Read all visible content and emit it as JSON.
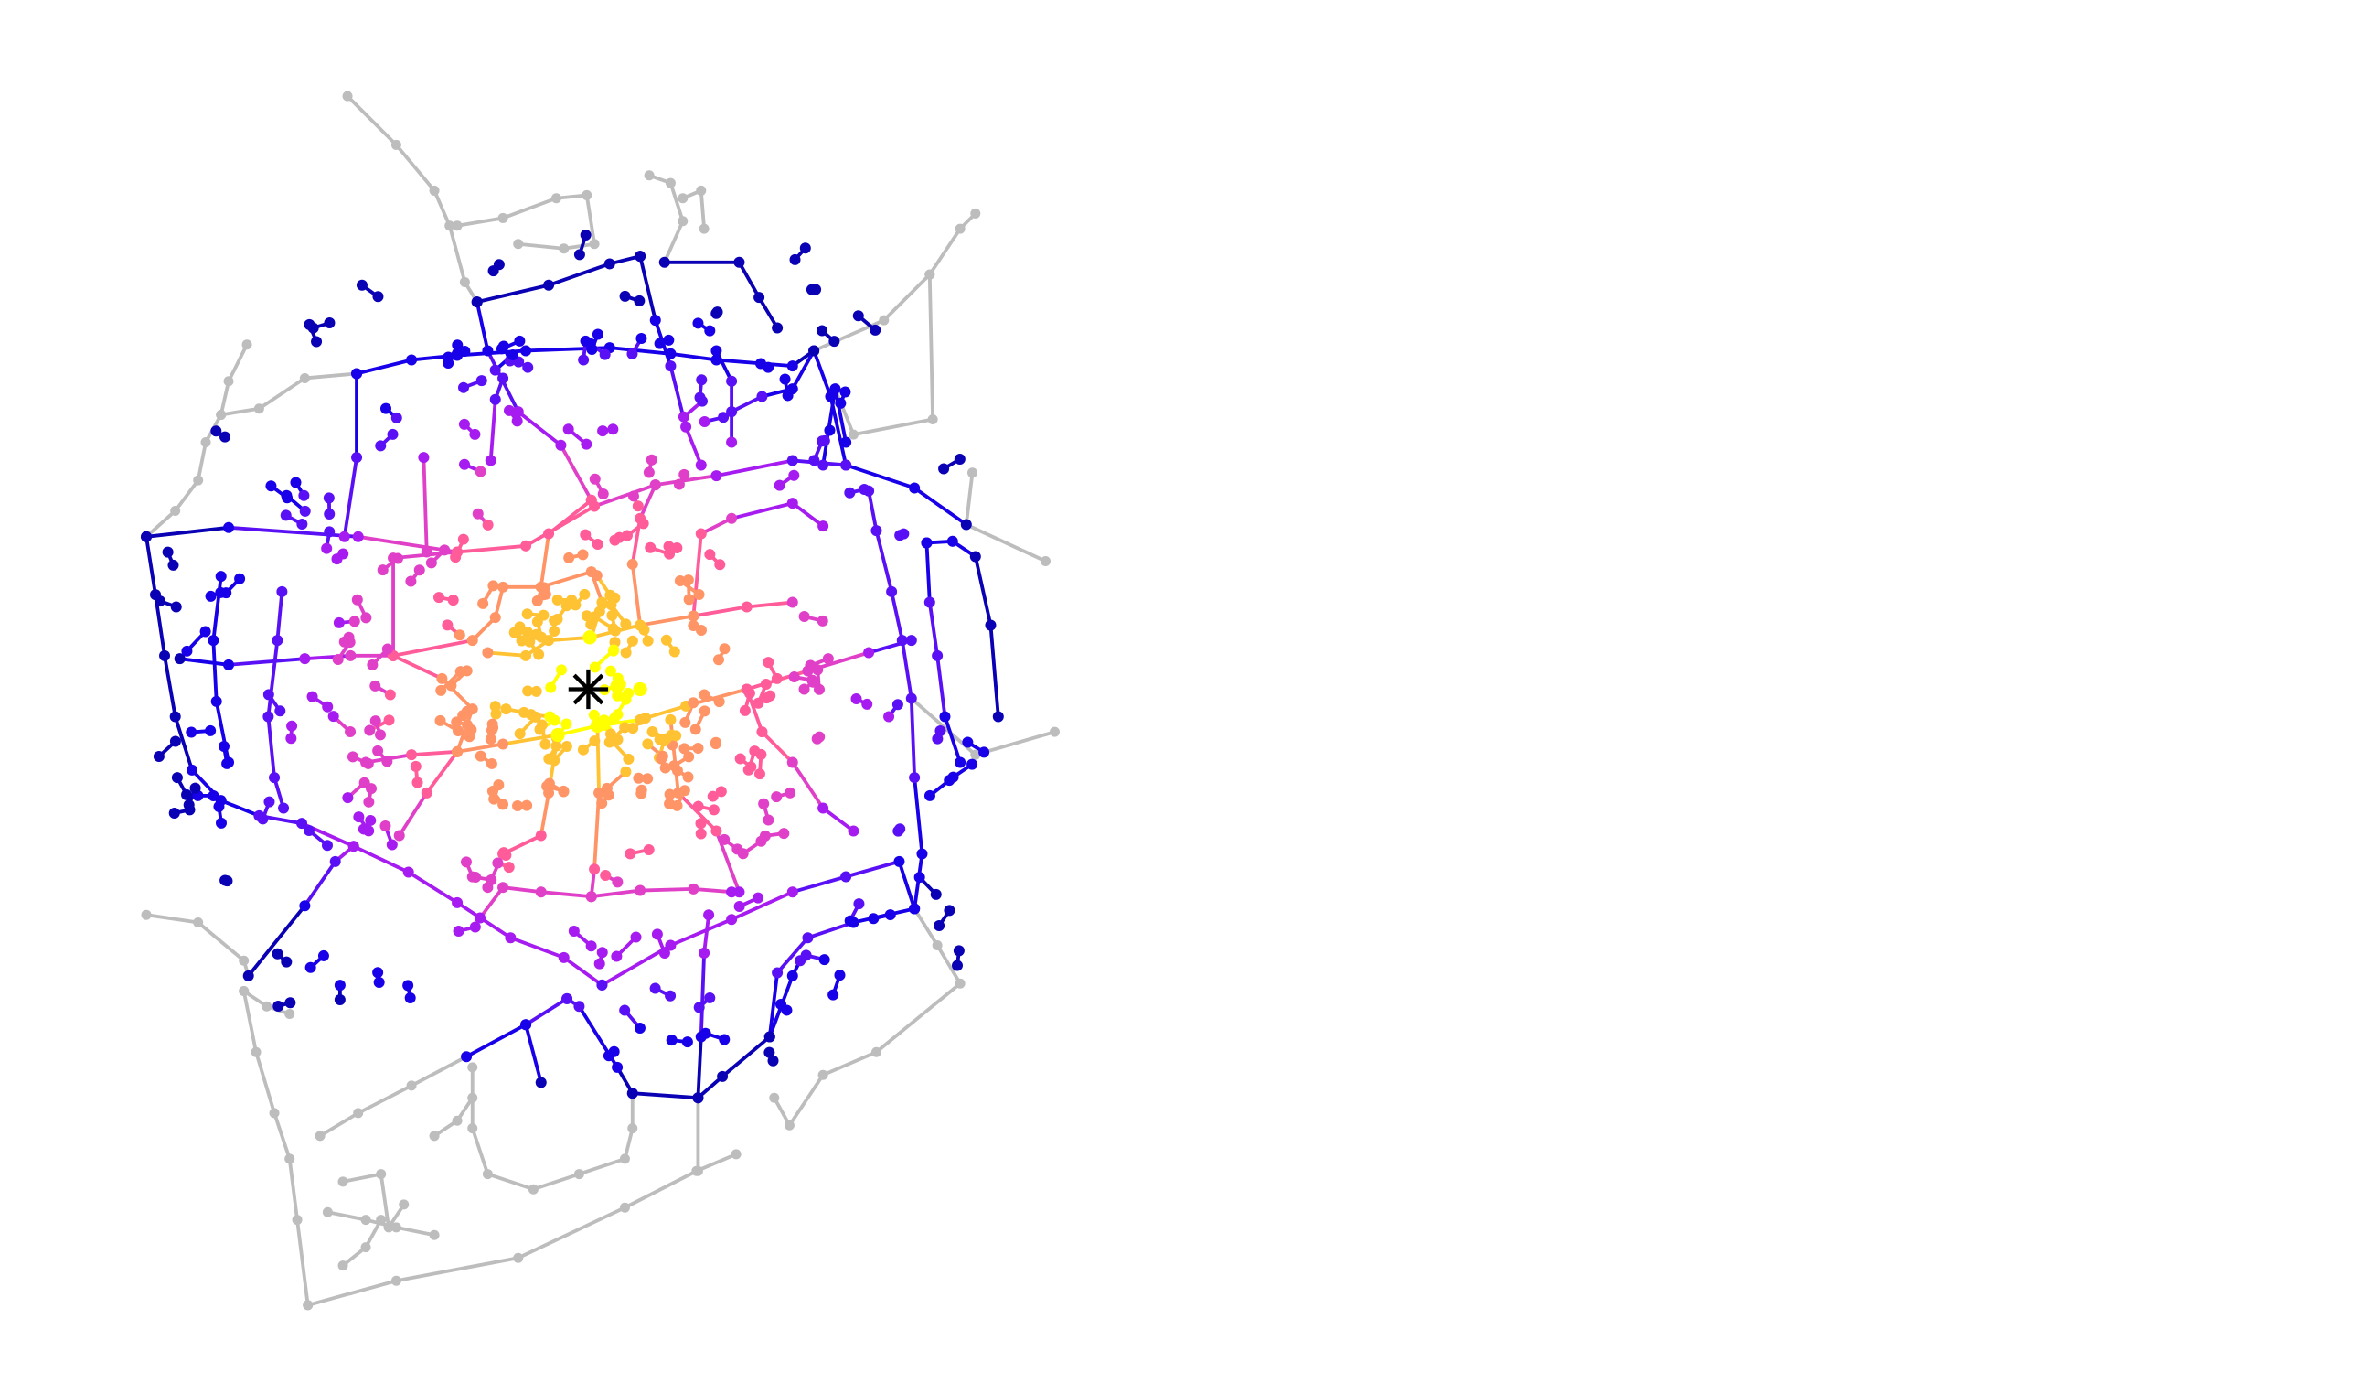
{
  "figure": {
    "kind": "street network isochrone map",
    "title": "",
    "legend": null
  },
  "colors": {
    "background": "#ffffff",
    "unreachable": "#bdbdbd",
    "center_marker": "#000000",
    "distance_bands": [
      "#ffff00",
      "#ffc233",
      "#ff9466",
      "#ff5c99",
      "#e040c8",
      "#a61bf0",
      "#5a10f5",
      "#1800e8",
      "#0a00b4"
    ]
  },
  "center": {
    "marker": "asterisk",
    "marker_name": "origin-marker-icon"
  },
  "map_extent": {
    "left_fraction_of_figure": 0.45
  }
}
